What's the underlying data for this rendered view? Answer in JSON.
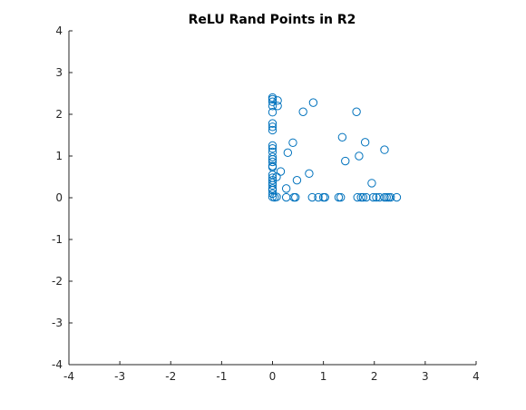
{
  "chart_data": {
    "type": "scatter",
    "title": "ReLU Rand Points in R2",
    "xlabel": "",
    "ylabel": "",
    "xlim": [
      -4,
      4
    ],
    "ylim": [
      -4,
      4
    ],
    "xticks": [
      -4,
      -3,
      -2,
      -1,
      0,
      1,
      2,
      3,
      4
    ],
    "yticks": [
      -4,
      -3,
      -2,
      -1,
      0,
      1,
      2,
      3,
      4
    ],
    "grid": false,
    "marker": "circle-open",
    "color": "#0072BD",
    "series": [
      {
        "points": [
          [
            0,
            2.4
          ],
          [
            0,
            2.36
          ],
          [
            0,
            2.3
          ],
          [
            0,
            2.2
          ],
          [
            0,
            2.05
          ],
          [
            0,
            1.78
          ],
          [
            0,
            1.7
          ],
          [
            0,
            1.62
          ],
          [
            0,
            1.25
          ],
          [
            0,
            1.18
          ],
          [
            0,
            1.1
          ],
          [
            0,
            0.98
          ],
          [
            0,
            0.92
          ],
          [
            0,
            0.86
          ],
          [
            0,
            0.76
          ],
          [
            0,
            0.73
          ],
          [
            0,
            0.55
          ],
          [
            0,
            0.48
          ],
          [
            0,
            0.42
          ],
          [
            0,
            0.36
          ],
          [
            0,
            0.3
          ],
          [
            0,
            0.22
          ],
          [
            0,
            0.18
          ],
          [
            0,
            0.1
          ],
          [
            0,
            0.02
          ],
          [
            0.04,
            0.01
          ],
          [
            0.08,
            0.02
          ],
          [
            0.1,
            2.33
          ],
          [
            0.1,
            2.2
          ],
          [
            0.08,
            0.5
          ],
          [
            0.16,
            0.63
          ],
          [
            0.27,
            0.22
          ],
          [
            0.27,
            0.01
          ],
          [
            0.3,
            1.08
          ],
          [
            0.4,
            1.32
          ],
          [
            0.42,
            0.01
          ],
          [
            0.45,
            0.01
          ],
          [
            0.48,
            0.42
          ],
          [
            0.6,
            2.06
          ],
          [
            0.72,
            0.58
          ],
          [
            0.78,
            0.01
          ],
          [
            0.8,
            2.28
          ],
          [
            0.9,
            0.01
          ],
          [
            1.0,
            0.01
          ],
          [
            1.03,
            0.01
          ],
          [
            1.3,
            0.01
          ],
          [
            1.34,
            0.01
          ],
          [
            1.37,
            1.45
          ],
          [
            1.43,
            0.88
          ],
          [
            1.65,
            2.06
          ],
          [
            1.67,
            0.01
          ],
          [
            1.7,
            1.0
          ],
          [
            1.74,
            0.01
          ],
          [
            1.78,
            0.01
          ],
          [
            1.82,
            1.33
          ],
          [
            1.84,
            0.01
          ],
          [
            1.95,
            0.35
          ],
          [
            1.98,
            0.01
          ],
          [
            2.04,
            0.01
          ],
          [
            2.1,
            0.01
          ],
          [
            2.2,
            1.15
          ],
          [
            2.2,
            0.01
          ],
          [
            2.24,
            0.01
          ],
          [
            2.28,
            0.01
          ],
          [
            2.32,
            0.01
          ],
          [
            2.44,
            0.01
          ]
        ]
      }
    ]
  }
}
